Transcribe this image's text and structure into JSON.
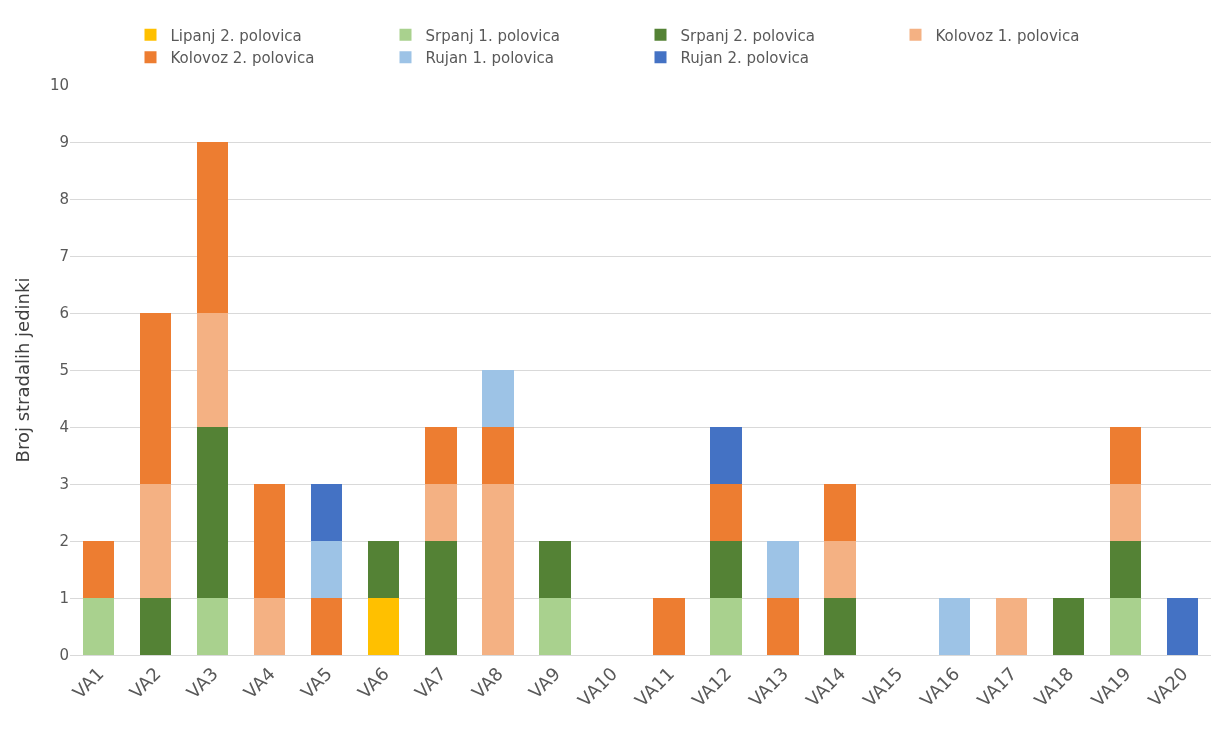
{
  "chart_data": {
    "type": "bar",
    "stacked": true,
    "ylabel": "Broj stradalih jedinki",
    "categories": [
      "VA1",
      "VA2",
      "VA3",
      "VA4",
      "VA5",
      "VA6",
      "VA7",
      "VA8",
      "VA9",
      "VA10",
      "VA11",
      "VA12",
      "VA13",
      "VA14",
      "VA15",
      "VA16",
      "VA17",
      "VA18",
      "VA19",
      "VA20"
    ],
    "series": [
      {
        "name": "Lipanj 2. polovica",
        "color": "#ffc000",
        "values": [
          null,
          null,
          null,
          null,
          null,
          1,
          null,
          null,
          null,
          null,
          null,
          null,
          null,
          null,
          null,
          null,
          null,
          null,
          null,
          null
        ]
      },
      {
        "name": "Srpanj 1. polovica",
        "color": "#a9d18e",
        "values": [
          1,
          null,
          1,
          null,
          null,
          null,
          null,
          null,
          1,
          null,
          null,
          1,
          null,
          null,
          null,
          null,
          null,
          null,
          1,
          null
        ]
      },
      {
        "name": "Srpanj 2. polovica",
        "color": "#548235",
        "values": [
          null,
          1,
          3,
          null,
          null,
          1,
          2,
          null,
          1,
          null,
          null,
          1,
          null,
          1,
          null,
          null,
          null,
          1,
          1,
          null
        ]
      },
      {
        "name": "Kolovoz 1. polovica",
        "color": "#f4b183",
        "values": [
          null,
          2,
          2,
          1,
          null,
          null,
          1,
          3,
          null,
          null,
          null,
          null,
          null,
          1,
          null,
          null,
          1,
          null,
          1,
          null
        ]
      },
      {
        "name": "Kolovoz 2. polovica",
        "color": "#ed7d31",
        "values": [
          1,
          3,
          3,
          2,
          1,
          null,
          1,
          1,
          null,
          null,
          1,
          1,
          1,
          1,
          null,
          null,
          null,
          null,
          1,
          null
        ]
      },
      {
        "name": "Rujan 1. polovica",
        "color": "#9dc3e6",
        "values": [
          null,
          null,
          null,
          null,
          1,
          null,
          null,
          1,
          null,
          null,
          null,
          null,
          1,
          null,
          null,
          1,
          null,
          null,
          null,
          null
        ]
      },
      {
        "name": "Rujan 2. polovica",
        "color": "#4472c4",
        "values": [
          null,
          null,
          null,
          null,
          1,
          null,
          null,
          null,
          null,
          null,
          null,
          1,
          null,
          null,
          null,
          null,
          null,
          null,
          null,
          1
        ]
      }
    ],
    "ylim": [
      0,
      10
    ],
    "yticks": [
      0,
      1,
      2,
      3,
      4,
      5,
      6,
      7,
      8,
      9,
      10
    ],
    "grid": "y",
    "legend": "top"
  }
}
